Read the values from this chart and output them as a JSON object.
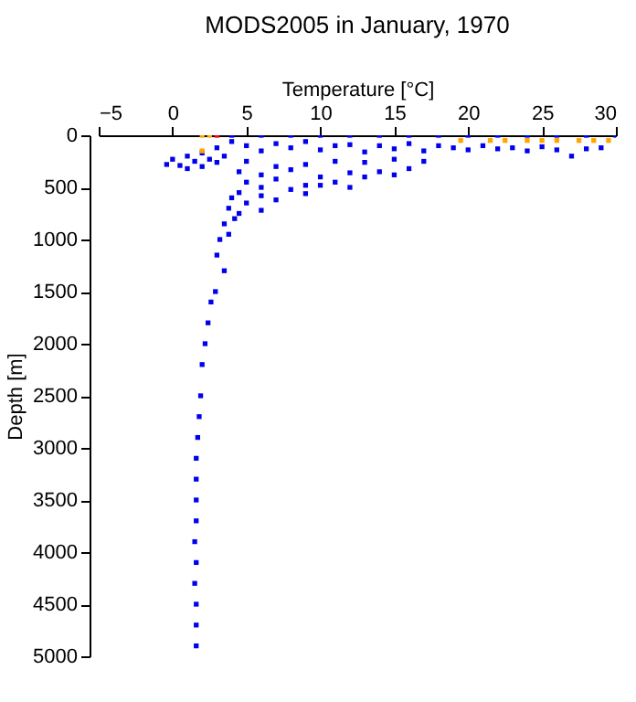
{
  "chart_data": {
    "type": "scatter",
    "title": "MODS2005 in January, 1970",
    "xlabel": "Temperature [°C]",
    "ylabel": "Depth [m]",
    "xlim": [
      -5,
      30
    ],
    "xticks": [
      -5,
      0,
      5,
      10,
      15,
      20,
      25,
      30
    ],
    "ylim": [
      5000,
      0
    ],
    "yticks": [
      0,
      500,
      1000,
      1500,
      2000,
      2500,
      3000,
      3500,
      4000,
      4500,
      5000
    ],
    "grid": false,
    "marker": "square",
    "series": [
      {
        "color": "#0000ee",
        "x": [
          4,
          6,
          8,
          10,
          12,
          14,
          16,
          18,
          20,
          22,
          24,
          26,
          28,
          30,
          -0.4,
          0,
          0.5,
          1,
          1.5,
          2,
          2.5,
          3,
          3.5,
          4,
          5,
          6,
          7,
          8,
          9,
          10,
          11,
          12,
          13,
          14,
          15,
          16,
          17,
          18,
          19,
          20,
          21,
          22,
          23,
          24,
          25,
          26,
          27,
          28,
          29,
          1,
          2,
          3,
          5,
          7,
          9,
          11,
          13,
          15,
          17,
          4.5,
          6,
          8,
          10,
          12,
          14,
          16,
          5,
          7,
          9,
          11,
          13,
          15,
          4.5,
          6,
          8,
          10,
          12,
          4,
          5,
          6,
          7,
          9,
          3.8,
          4.5,
          6,
          3.5,
          4.2,
          3.2,
          3.8,
          3,
          3.5,
          2.9,
          2.6,
          2.4,
          2.2,
          2,
          1.9,
          1.8,
          1.7,
          1.6,
          1.6,
          1.6,
          1.6,
          1.5,
          1.6,
          1.5,
          1.6,
          1.6,
          1.6
        ],
        "values": [
          0,
          0,
          0,
          0,
          0,
          0,
          0,
          0,
          0,
          0,
          0,
          0,
          0,
          0,
          280,
          230,
          290,
          200,
          250,
          170,
          230,
          120,
          200,
          60,
          100,
          150,
          80,
          120,
          60,
          140,
          100,
          90,
          160,
          100,
          130,
          80,
          150,
          100,
          120,
          140,
          100,
          130,
          120,
          150,
          110,
          140,
          200,
          130,
          120,
          320,
          300,
          260,
          250,
          300,
          280,
          250,
          260,
          230,
          250,
          350,
          380,
          330,
          400,
          360,
          350,
          320,
          450,
          420,
          480,
          450,
          400,
          380,
          550,
          500,
          520,
          480,
          500,
          600,
          650,
          580,
          620,
          560,
          700,
          750,
          720,
          850,
          800,
          1000,
          950,
          1150,
          1300,
          1500,
          1600,
          1800,
          2000,
          2200,
          2500,
          2700,
          2900,
          3100,
          3300,
          3500,
          3700,
          3900,
          4100,
          4300,
          4500,
          4700,
          4900
        ]
      },
      {
        "color": "#ffa500",
        "x": [
          2,
          2.5,
          2,
          19.5,
          21.5,
          22.5,
          24,
          25,
          26,
          27.5,
          28.5,
          29.5
        ],
        "values": [
          0,
          0,
          150,
          50,
          50,
          50,
          50,
          50,
          50,
          50,
          50,
          50
        ]
      },
      {
        "color": "#ff0000",
        "x": [
          3
        ],
        "values": [
          0
        ]
      }
    ]
  }
}
